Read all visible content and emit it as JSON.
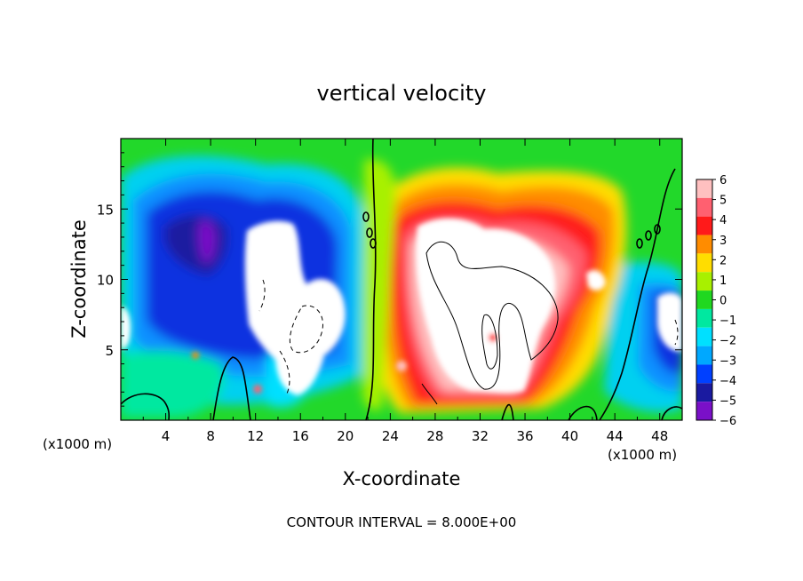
{
  "chart_data": {
    "type": "heatmap",
    "title": "vertical velocity",
    "xlabel": "X-coordinate",
    "ylabel": "Z-coordinate",
    "x_unit": "(x1000 m)",
    "x_unit_right": "(x1000 m)",
    "footer": "CONTOUR INTERVAL = 8.000E+00",
    "xlim": [
      0,
      50
    ],
    "ylim": [
      0,
      20
    ],
    "x_ticks": [
      4,
      8,
      12,
      16,
      20,
      24,
      28,
      32,
      36,
      40,
      44,
      48
    ],
    "x_tick_labels": [
      "4",
      "8",
      "12",
      "16",
      "20",
      "24",
      "28",
      "32",
      "36",
      "40",
      "44",
      "48"
    ],
    "y_ticks": [
      5,
      10,
      15
    ],
    "y_tick_labels": [
      "5",
      "10",
      "15"
    ],
    "colorbar": {
      "levels": [
        6,
        5,
        4,
        3,
        2,
        1,
        0,
        -1,
        -2,
        -3,
        -4,
        -5,
        -6
      ],
      "labels": [
        "6",
        "5",
        "4",
        "3",
        "2",
        "1",
        "0",
        "−1",
        "−2",
        "−3",
        "−4",
        "−5",
        "−6"
      ],
      "colors": [
        "#ffc0c0",
        "#ff6070",
        "#ff1a1a",
        "#ff8c00",
        "#ffdd00",
        "#a8f000",
        "#20d820",
        "#00e8a0",
        "#00e0ff",
        "#00a8ff",
        "#0040ff",
        "#1a1aa0",
        "#7a10c8"
      ]
    },
    "grid": false,
    "legend": "right"
  }
}
